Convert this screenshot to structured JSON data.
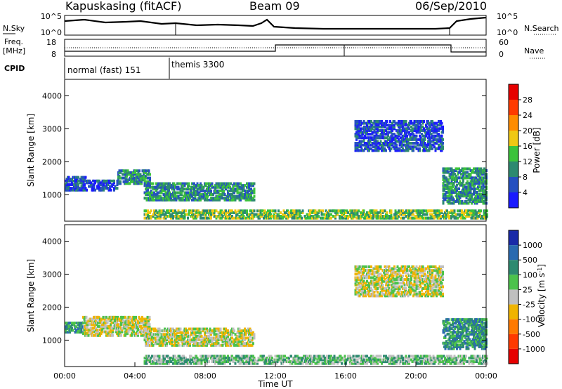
{
  "header": {
    "site": "Kapuskasing (fitACF)",
    "beam": "Beam 09",
    "date": "06/Sep/2010"
  },
  "panels": {
    "nsky": {
      "label": "N.Sky",
      "ticks": [
        "10^5",
        "10^0"
      ],
      "right_label": "N.Search",
      "right_ticks": [
        "10^5",
        "10^0"
      ]
    },
    "freq": {
      "label_line1": "Freq.",
      "label_line2": "[MHz]",
      "ticks": [
        "18",
        "8"
      ],
      "right_label": "Nave",
      "right_ticks": [
        "60",
        "0"
      ]
    },
    "cpid": {
      "label": "CPID",
      "modes": [
        {
          "name": "normal (fast) 151",
          "start_hour": 0,
          "end_hour": 6.1
        },
        {
          "name": "themis 3300",
          "start_hour": 6.1,
          "end_hour": 24
        }
      ]
    }
  },
  "chart_data": [
    {
      "type": "heatmap",
      "name": "power",
      "ylabel": "Slant Range [km]",
      "xlim": [
        0,
        24
      ],
      "ylim": [
        200,
        4500
      ],
      "yticks": [
        1000,
        2000,
        3000,
        4000
      ],
      "colorbar": {
        "label": "Power [dB]",
        "ticks": [
          "4",
          "8",
          "12",
          "16",
          "20",
          "24",
          "28"
        ],
        "colors": [
          "#1a1aff",
          "#2550c0",
          "#2d8a70",
          "#3cc33c",
          "#f0c814",
          "#ff8c00",
          "#ff3b00",
          "#e60000"
        ]
      },
      "bands": [
        {
          "x_start": 0.0,
          "x_end": 1.2,
          "y_start": 1100,
          "y_end": 1500,
          "level": 1
        },
        {
          "x_start": 1.2,
          "x_end": 3.0,
          "y_start": 1100,
          "y_end": 1400,
          "level": 1
        },
        {
          "x_start": 3.0,
          "x_end": 4.8,
          "y_start": 1300,
          "y_end": 1700,
          "level": 2
        },
        {
          "x_start": 4.5,
          "x_end": 10.8,
          "y_start": 800,
          "y_end": 1300,
          "level": 2
        },
        {
          "x_start": 4.5,
          "x_end": 24.0,
          "y_start": 250,
          "y_end": 500,
          "level": 3
        },
        {
          "x_start": 16.5,
          "x_end": 21.5,
          "y_start": 2300,
          "y_end": 3200,
          "level": 1
        },
        {
          "x_start": 21.5,
          "x_end": 24.0,
          "y_start": 700,
          "y_end": 1800,
          "level": 2
        }
      ]
    },
    {
      "type": "heatmap",
      "name": "velocity",
      "ylabel": "Slant Range [km]",
      "xlabel": "Time UT",
      "xlim": [
        0,
        24
      ],
      "ylim": [
        200,
        4500
      ],
      "yticks": [
        1000,
        2000,
        3000,
        4000
      ],
      "xticks": [
        "00:00",
        "04:00",
        "08:00",
        "12:00",
        "16:00",
        "20:00",
        "00:00"
      ],
      "colorbar": {
        "label": "Velocity [m s^-1]",
        "ticks": [
          "1000",
          "500",
          "100",
          "25",
          "-25",
          "-100",
          "-500",
          "-1000"
        ],
        "colors": [
          "#1a2aa8",
          "#2a6ab0",
          "#2d8a70",
          "#4cc24c",
          "#c0c0c0",
          "#f0b400",
          "#ff7a00",
          "#ff3a00",
          "#e60000"
        ]
      },
      "bands": [
        {
          "x_start": 0.0,
          "x_end": 1.0,
          "y_start": 1200,
          "y_end": 1500,
          "level": 6
        },
        {
          "x_start": 1.0,
          "x_end": 4.8,
          "y_start": 1100,
          "y_end": 1700,
          "level": 4
        },
        {
          "x_start": 4.5,
          "x_end": 10.8,
          "y_start": 800,
          "y_end": 1300,
          "level": 4
        },
        {
          "x_start": 4.5,
          "x_end": 24.0,
          "y_start": 250,
          "y_end": 500,
          "level": 5
        },
        {
          "x_start": 16.5,
          "x_end": 21.5,
          "y_start": 2300,
          "y_end": 3200,
          "level": 4
        },
        {
          "x_start": 21.5,
          "x_end": 24.0,
          "y_start": 700,
          "y_end": 1600,
          "level": 6
        }
      ]
    }
  ]
}
